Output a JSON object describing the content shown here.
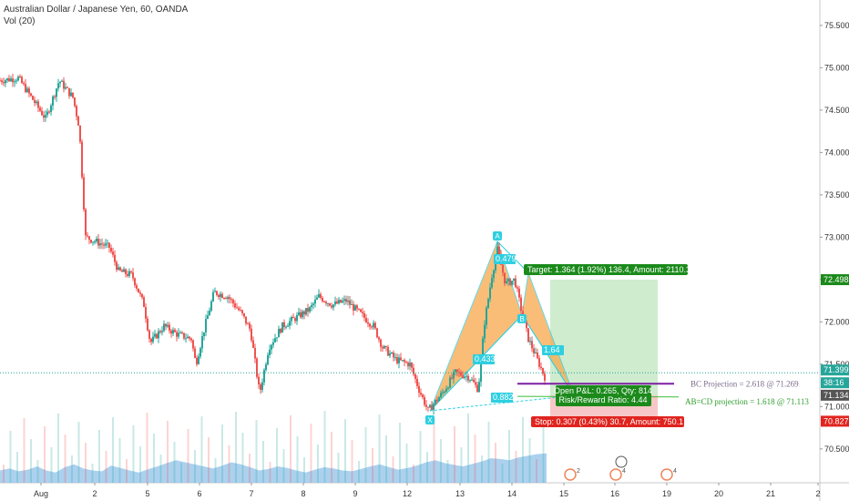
{
  "header": {
    "symbol_title": "Australian Dollar / Japanese Yen, 60, OANDA",
    "volume_label": "Vol (20)"
  },
  "colors": {
    "up": "#26a69a",
    "down": "#ef5350",
    "pattern_fill": "#f7a84b",
    "pattern_point": "#2ecfe0",
    "target_zone": "#bfe6bf",
    "stop_zone": "#f4b4b4",
    "target_label": "#1b8a1b",
    "stop_label": "#e0241f",
    "volume": "#9ec9ec",
    "price_line": "#26a69a",
    "bc_line": "#7b1fa2"
  },
  "chart_data": {
    "type": "candlestick",
    "y_axis": {
      "ticks": [
        "75.500",
        "75.000",
        "74.500",
        "74.000",
        "73.500",
        "73.000",
        "72.500",
        "72.000",
        "71.500",
        "71.000",
        "70.500"
      ],
      "range": [
        70.1,
        75.8
      ]
    },
    "x_axis": {
      "ticks": [
        "Aug",
        "2",
        "5",
        "6",
        "7",
        "8",
        "9",
        "12",
        "13",
        "14",
        "15",
        "16",
        "19",
        "20",
        "21",
        "2"
      ]
    },
    "price_badges": [
      {
        "value": "72.498",
        "kind": "target"
      },
      {
        "value": "71.399",
        "kind": "current"
      },
      {
        "value": "38:16",
        "kind": "countdown"
      },
      {
        "value": "71.134",
        "kind": "entry"
      },
      {
        "value": "70.827",
        "kind": "stop"
      }
    ],
    "price_path": [
      [
        0,
        74.85
      ],
      [
        2,
        74.88
      ],
      [
        5,
        74.4
      ],
      [
        6.5,
        74.85
      ],
      [
        8,
        74.65
      ],
      [
        8.7,
        74.3
      ],
      [
        9.4,
        73.0
      ],
      [
        10.5,
        72.95
      ],
      [
        12,
        72.88
      ],
      [
        13,
        72.6
      ],
      [
        14.5,
        72.55
      ],
      [
        15.8,
        72.2
      ],
      [
        16.5,
        71.75
      ],
      [
        18,
        71.95
      ],
      [
        19.5,
        71.85
      ],
      [
        21,
        71.8
      ],
      [
        21.5,
        71.5
      ],
      [
        22.5,
        71.95
      ],
      [
        23.5,
        72.35
      ],
      [
        25,
        72.3
      ],
      [
        26.5,
        72.1
      ],
      [
        27.5,
        71.9
      ],
      [
        28.5,
        71.15
      ],
      [
        29.5,
        71.7
      ],
      [
        31,
        71.95
      ],
      [
        32.5,
        72.05
      ],
      [
        34,
        72.15
      ],
      [
        35,
        72.3
      ],
      [
        36.5,
        72.2
      ],
      [
        38,
        72.25
      ],
      [
        39.5,
        72.1
      ],
      [
        41,
        71.95
      ],
      [
        42,
        71.7
      ],
      [
        43.5,
        71.55
      ],
      [
        45,
        71.5
      ],
      [
        46,
        71.2
      ],
      [
        47,
        70.95
      ],
      [
        48.5,
        71.15
      ],
      [
        50,
        71.4
      ],
      [
        51.5,
        71.35
      ],
      [
        52.5,
        71.2
      ],
      [
        53.2,
        72.0
      ],
      [
        54,
        72.55
      ],
      [
        54.6,
        72.85
      ],
      [
        55.5,
        72.45
      ],
      [
        56.5,
        72.5
      ],
      [
        57.3,
        72.1
      ],
      [
        58,
        71.8
      ],
      [
        59,
        71.55
      ],
      [
        60,
        71.3
      ]
    ],
    "pattern": {
      "points": [
        {
          "label": "X",
          "t": 47.2,
          "v": 70.95
        },
        {
          "label": "A",
          "t": 54.6,
          "v": 72.95
        },
        {
          "label": "B",
          "t": 57.3,
          "v": 72.08
        },
        {
          "label": "C",
          "t": 58.0,
          "v": 72.58
        },
        {
          "label": "D",
          "t": 63.0,
          "v": 71.13
        }
      ],
      "ratios": [
        "0.433",
        "0.882",
        "0.479",
        "1.64"
      ]
    },
    "position": {
      "target_label": "Target: 1.364 (1.92%) 136.4, Amount: 2110.3",
      "open_label": "Open P&L: 0.265, Qty: 814",
      "rr_label": "Risk/Reward Ratio: 4.44",
      "stop_label": "Stop: 0.307 (0.43%) 30.7, Amount: 750.1"
    },
    "projections": [
      "BC Projection = 2.618 @ 71.269",
      "AB=CD projection = 1.618 @ 71.113"
    ],
    "volume_profile": [
      0.3,
      0.35,
      0.28,
      0.32,
      0.4,
      0.3,
      0.25,
      0.38,
      0.45,
      0.35,
      0.3,
      0.28,
      0.42,
      0.36,
      0.3,
      0.25,
      0.33,
      0.4,
      0.48,
      0.55,
      0.5,
      0.45,
      0.4,
      0.35,
      0.42,
      0.5,
      0.45,
      0.38,
      0.3,
      0.34,
      0.4,
      0.36,
      0.3,
      0.25,
      0.32,
      0.38,
      0.35,
      0.3,
      0.28,
      0.34,
      0.4,
      0.45,
      0.38,
      0.32,
      0.36,
      0.42,
      0.5,
      0.55,
      0.48,
      0.44,
      0.4,
      0.46,
      0.52,
      0.6,
      0.58,
      0.55,
      0.62,
      0.66,
      0.7,
      0.72
    ],
    "events": [
      {
        "label": "2",
        "day": "15"
      },
      {
        "label": "4",
        "day": "16"
      },
      {
        "label": "4",
        "day": "19"
      }
    ]
  }
}
